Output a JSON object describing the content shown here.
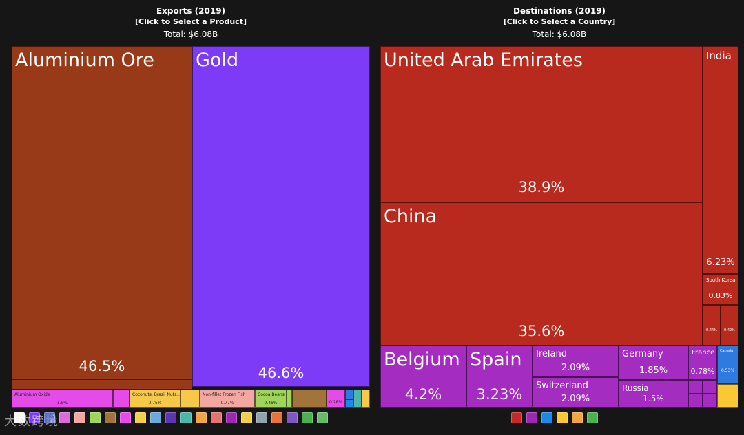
{
  "left_header": {
    "title": "Exports (2019)",
    "subtitle": "[Click to Select a Product]",
    "total": "Total: $6.08B"
  },
  "right_header": {
    "title": "Destinations (2019)",
    "subtitle": "[Click to Select a Country]",
    "total": "Total: $6.08B"
  },
  "watermark": "大数跨境",
  "chart_data": [
    {
      "type": "treemap",
      "title": "Exports (2019)",
      "total": "$6.08B",
      "items": [
        {
          "label": "Aluminium Ore",
          "share_pct": 46.5,
          "color": "#983A18"
        },
        {
          "label": "Gold",
          "share_pct": 46.6,
          "color": "#7D3BF7"
        },
        {
          "label": "Aluminium Oxide",
          "share_pct": 1.5,
          "color": "#E44BE8"
        },
        {
          "label": "Coconuts, Brazil Nuts...",
          "share_pct": 0.75,
          "color": "#F6C94A"
        },
        {
          "label": "Non-fillet Frozen Fish",
          "share_pct": 0.77,
          "color": "#F2A8A0"
        },
        {
          "label": "Cocoa Beans",
          "share_pct": 0.46,
          "color": "#9FD65A"
        },
        {
          "label": "",
          "share_pct": 0.28,
          "color": "#E44BE8"
        }
      ]
    },
    {
      "type": "treemap",
      "title": "Destinations (2019)",
      "total": "$6.08B",
      "items": [
        {
          "label": "United Arab Emirates",
          "share_pct": 38.9,
          "color": "#B8291E"
        },
        {
          "label": "China",
          "share_pct": 35.6,
          "color": "#B8291E"
        },
        {
          "label": "India",
          "share_pct": 6.23,
          "color": "#B8291E"
        },
        {
          "label": "South Korea",
          "share_pct": 0.83,
          "color": "#B8291E"
        },
        {
          "label": "",
          "share_pct": 0.44,
          "color": "#B8291E"
        },
        {
          "label": "",
          "share_pct": 0.42,
          "color": "#B8291E"
        },
        {
          "label": "Belgium",
          "share_pct": 4.2,
          "color": "#A52CC0"
        },
        {
          "label": "Spain",
          "share_pct": 3.23,
          "color": "#A52CC0"
        },
        {
          "label": "Ireland",
          "share_pct": 2.09,
          "color": "#A52CC0"
        },
        {
          "label": "Switzerland",
          "share_pct": 2.09,
          "color": "#A52CC0"
        },
        {
          "label": "Germany",
          "share_pct": 1.85,
          "color": "#A52CC0"
        },
        {
          "label": "Russia",
          "share_pct": 1.5,
          "color": "#A52CC0"
        },
        {
          "label": "France",
          "share_pct": 0.78,
          "color": "#A52CC0"
        },
        {
          "label": "Canada",
          "share_pct": 0.53,
          "color": "#2D7BE0"
        }
      ]
    }
  ],
  "product_icons": [
    {
      "name": "animal-products-icon",
      "color": "#F5F5F5"
    },
    {
      "name": "vegetable-products-icon",
      "color": "#7D3BF7"
    },
    {
      "name": "foodstuffs-icon",
      "color": "#5C6BC0"
    },
    {
      "name": "mineral-products-icon",
      "color": "#D86CD8"
    },
    {
      "name": "chemical-products-icon",
      "color": "#F2A8A0"
    },
    {
      "name": "plastics-rubbers-icon",
      "color": "#9FD65A"
    },
    {
      "name": "animal-hides-icon",
      "color": "#A0743B"
    },
    {
      "name": "wood-products-icon",
      "color": "#E44BE8"
    },
    {
      "name": "paper-goods-icon",
      "color": "#F2D04A"
    },
    {
      "name": "textiles-icon",
      "color": "#6FA8DC"
    },
    {
      "name": "footwear-icon",
      "color": "#5E35B1"
    },
    {
      "name": "stone-glass-icon",
      "color": "#4DB6AC"
    },
    {
      "name": "precious-metals-icon",
      "color": "#F4A442"
    },
    {
      "name": "metals-icon",
      "color": "#E57373"
    },
    {
      "name": "machines-icon",
      "color": "#9C27B0"
    },
    {
      "name": "transportation-icon",
      "color": "#F2D04A"
    },
    {
      "name": "instruments-icon",
      "color": "#90A4AE"
    },
    {
      "name": "weapons-icon",
      "color": "#E8743B"
    },
    {
      "name": "miscellaneous-icon",
      "color": "#7E57C2"
    },
    {
      "name": "arts-antiques-icon",
      "color": "#4CAF50"
    },
    {
      "name": "unknown-icon",
      "color": "#66BB6A"
    }
  ],
  "region_icons": [
    {
      "name": "asia-icon",
      "color": "#C62828"
    },
    {
      "name": "europe-icon",
      "color": "#9C27B0"
    },
    {
      "name": "north-america-icon",
      "color": "#1E88E5"
    },
    {
      "name": "africa-icon",
      "color": "#F9C834"
    },
    {
      "name": "oceania-icon",
      "color": "#F4A442"
    },
    {
      "name": "south-america-icon",
      "color": "#4CAF50"
    }
  ]
}
